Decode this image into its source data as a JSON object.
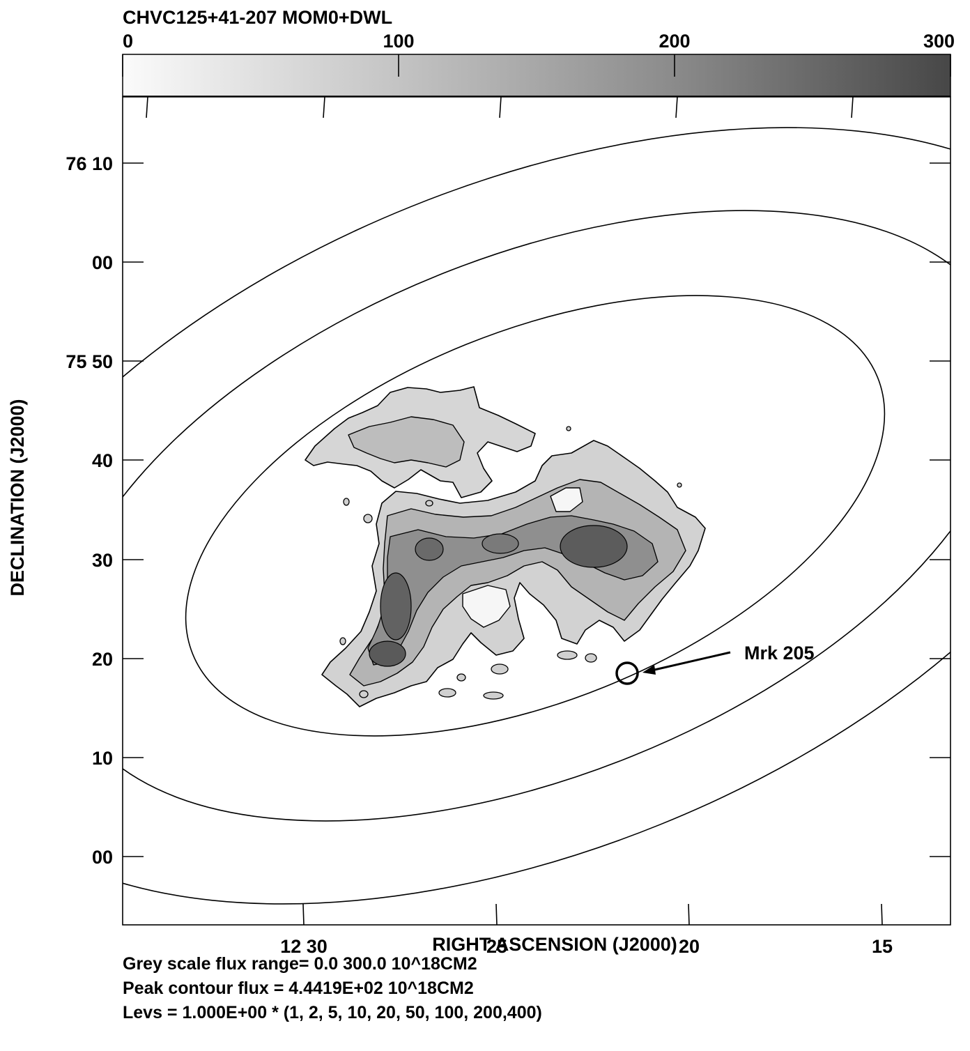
{
  "chart_data": {
    "type": "heatmap",
    "title": "CHVC125+41-207  MOM0+DWL",
    "xlabel": "RIGHT ASCENSION (J2000)",
    "ylabel": "DECLINATION (J2000)",
    "colorbar": {
      "range": [
        0,
        300
      ],
      "tick_labels": [
        "0",
        "100",
        "200",
        "300"
      ],
      "colormap": "grey (white to dark grey)"
    },
    "x_tick_labels": [
      "12 30",
      "25",
      "20",
      "15"
    ],
    "y_tick_labels": [
      "76 10",
      "00",
      "75 50",
      "40",
      "30",
      "20",
      "10",
      "00"
    ],
    "annotation": {
      "label": "Mrk 205",
      "ra": "12 21 44",
      "dec": "75 18.6",
      "marker": "circle with arrow"
    },
    "contour_levels": [
      1,
      2,
      5,
      10,
      20,
      50,
      100,
      200,
      400
    ],
    "footer": [
      "Grey scale flux range= 0.0 300.0 10^18CM2",
      "Peak contour flux =  4.4419E+02 10^18CM2",
      "Levs = 1.000E+00 * (1, 2, 5, 10, 20, 50, 100, 200,400)"
    ]
  },
  "colors": {
    "ink": "#000000",
    "cloud_light": "#d2d2d2",
    "cloud_mid": "#a8a8a8",
    "cloud_dark": "#707070",
    "cloud_core": "#555555",
    "bar_light": "#f7f7f7",
    "bar_dark": "#4a4a4a"
  }
}
